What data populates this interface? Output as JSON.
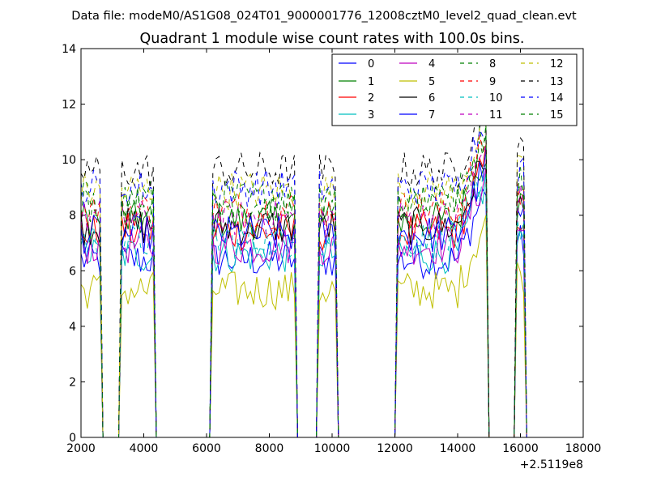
{
  "suptitle": "Data file: modeM0/AS1G08_024T01_9000001776_12008cztM0_level2_quad_clean.evt",
  "chart_data": {
    "type": "line",
    "title": "Quadrant 1 module wise count rates with 100.0s bins.",
    "xlabel": "",
    "ylabel": "",
    "x_offset_label": "+2.5119e8",
    "xlim": [
      2000,
      18000
    ],
    "ylim": [
      0,
      14
    ],
    "xticks": [
      2000,
      4000,
      6000,
      8000,
      10000,
      12000,
      14000,
      16000,
      18000
    ],
    "yticks": [
      0,
      2,
      4,
      6,
      8,
      10,
      12,
      14
    ],
    "grid": false,
    "legend_position": "top-right",
    "legend_columns": 4,
    "segments": [
      {
        "start": 2000,
        "end": 2600
      },
      {
        "start": 3300,
        "end": 4300
      },
      {
        "start": 6200,
        "end": 8800
      },
      {
        "start": 9600,
        "end": 10100
      },
      {
        "start": 12100,
        "end": 14900
      },
      {
        "start": 15900,
        "end": 16100
      }
    ],
    "series": [
      {
        "name": "0",
        "color": "#0000ff",
        "dashed": false,
        "level": 6.4
      },
      {
        "name": "1",
        "color": "#008000",
        "dashed": false,
        "level": 7.8
      },
      {
        "name": "2",
        "color": "#ff0000",
        "dashed": false,
        "level": 7.4
      },
      {
        "name": "3",
        "color": "#00bfbf",
        "dashed": false,
        "level": 6.6
      },
      {
        "name": "4",
        "color": "#bf00bf",
        "dashed": false,
        "level": 6.9
      },
      {
        "name": "5",
        "color": "#bfbf00",
        "dashed": false,
        "level": 5.3
      },
      {
        "name": "6",
        "color": "#000000",
        "dashed": false,
        "level": 7.6
      },
      {
        "name": "7",
        "color": "#0000ff",
        "dashed": false,
        "level": 7.3
      },
      {
        "name": "8",
        "color": "#008000",
        "dashed": true,
        "level": 8.6
      },
      {
        "name": "9",
        "color": "#ff0000",
        "dashed": true,
        "level": 8.2
      },
      {
        "name": "10",
        "color": "#00bfbf",
        "dashed": true,
        "level": 7.1
      },
      {
        "name": "11",
        "color": "#bf00bf",
        "dashed": true,
        "level": 7.9
      },
      {
        "name": "12",
        "color": "#bfbf00",
        "dashed": true,
        "level": 8.9
      },
      {
        "name": "13",
        "color": "#000000",
        "dashed": true,
        "level": 9.6
      },
      {
        "name": "14",
        "color": "#0000ff",
        "dashed": true,
        "level": 9.0
      },
      {
        "name": "15",
        "color": "#008000",
        "dashed": true,
        "level": 8.4
      }
    ]
  }
}
